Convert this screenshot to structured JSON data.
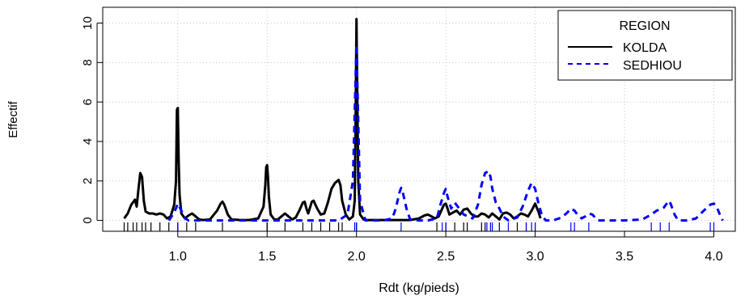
{
  "chart_data": {
    "type": "line",
    "title": "",
    "xlabel": "Rdt (kg/pieds)",
    "ylabel": "Effectif",
    "xlim": [
      0.58,
      4.12
    ],
    "ylim": [
      -0.55,
      10.8
    ],
    "x_ticks": [
      "1.0",
      "1.5",
      "2.0",
      "2.5",
      "3.0",
      "3.5",
      "4.0"
    ],
    "y_ticks": [
      "0",
      "2",
      "4",
      "6",
      "8",
      "10"
    ],
    "grid": true,
    "legend": {
      "title": "REGION",
      "placement": "top-right",
      "entries": [
        "KOLDA",
        "SEDHIOU"
      ]
    },
    "series": [
      {
        "name": "KOLDA",
        "color": "#000000",
        "dash": "solid",
        "x": [
          0.7,
          0.72,
          0.74,
          0.76,
          0.77,
          0.78,
          0.79,
          0.8,
          0.81,
          0.82,
          0.84,
          0.86,
          0.88,
          0.9,
          0.92,
          0.94,
          0.96,
          0.98,
          0.99,
          0.995,
          1.0,
          1.005,
          1.01,
          1.02,
          1.04,
          1.06,
          1.08,
          1.1,
          1.12,
          1.14,
          1.18,
          1.22,
          1.24,
          1.25,
          1.26,
          1.28,
          1.3,
          1.35,
          1.4,
          1.45,
          1.48,
          1.49,
          1.495,
          1.5,
          1.505,
          1.51,
          1.52,
          1.54,
          1.56,
          1.58,
          1.6,
          1.62,
          1.64,
          1.66,
          1.68,
          1.7,
          1.71,
          1.72,
          1.73,
          1.75,
          1.76,
          1.78,
          1.8,
          1.82,
          1.84,
          1.86,
          1.88,
          1.9,
          1.91,
          1.92,
          1.94,
          1.96,
          1.98,
          1.99,
          1.995,
          2.0,
          2.005,
          2.01,
          2.02,
          2.04,
          2.06,
          2.08,
          2.1,
          2.15,
          2.2,
          2.3,
          2.35,
          2.38,
          2.4,
          2.42,
          2.44,
          2.46,
          2.48,
          2.49,
          2.5,
          2.51,
          2.52,
          2.54,
          2.56,
          2.58,
          2.6,
          2.62,
          2.64,
          2.66,
          2.68,
          2.7,
          2.72,
          2.74,
          2.76,
          2.78,
          2.8,
          2.82,
          2.84,
          2.86,
          2.88,
          2.9,
          2.92,
          2.94,
          2.96,
          2.98,
          3.0,
          3.02,
          3.03
        ],
        "y": [
          0.1,
          0.35,
          0.8,
          1.05,
          0.7,
          1.6,
          2.4,
          2.2,
          1.0,
          0.45,
          0.35,
          0.35,
          0.3,
          0.35,
          0.3,
          0.1,
          0.2,
          0.8,
          2.0,
          5.6,
          5.7,
          3.0,
          1.3,
          0.35,
          0.1,
          0.25,
          0.35,
          0.2,
          0.05,
          0.02,
          0.05,
          0.5,
          0.85,
          0.95,
          0.8,
          0.3,
          0.05,
          0.02,
          0.02,
          0.1,
          0.7,
          1.8,
          2.7,
          2.8,
          2.2,
          1.2,
          0.3,
          0.05,
          0.05,
          0.2,
          0.35,
          0.2,
          0.05,
          0.15,
          0.5,
          0.9,
          0.95,
          0.6,
          0.35,
          0.95,
          1.0,
          0.6,
          0.3,
          0.35,
          0.9,
          1.6,
          1.9,
          2.05,
          1.8,
          1.0,
          0.3,
          0.05,
          0.2,
          1.0,
          5.0,
          10.2,
          6.0,
          2.0,
          0.3,
          0.05,
          0.02,
          0.02,
          0.02,
          0.02,
          0.02,
          0.02,
          0.1,
          0.25,
          0.3,
          0.2,
          0.1,
          0.2,
          0.6,
          0.8,
          0.85,
          0.6,
          0.3,
          0.4,
          0.5,
          0.3,
          0.55,
          0.6,
          0.35,
          0.2,
          0.2,
          0.35,
          0.3,
          0.15,
          0.35,
          0.2,
          0.05,
          0.35,
          0.4,
          0.3,
          0.1,
          0.2,
          0.35,
          0.3,
          0.2,
          0.5,
          0.85,
          0.4,
          0.1
        ]
      },
      {
        "name": "SEDHIOU",
        "color": "#0000ff",
        "dash": "dashed",
        "x": [
          0.95,
          0.98,
          1.0,
          1.02,
          1.04,
          1.06,
          1.5,
          1.9,
          1.95,
          1.98,
          1.99,
          2.0,
          2.01,
          2.02,
          2.05,
          2.1,
          2.15,
          2.2,
          2.22,
          2.24,
          2.25,
          2.26,
          2.28,
          2.3,
          2.35,
          2.4,
          2.45,
          2.47,
          2.49,
          2.5,
          2.51,
          2.53,
          2.55,
          2.6,
          2.65,
          2.68,
          2.7,
          2.72,
          2.74,
          2.75,
          2.76,
          2.78,
          2.8,
          2.82,
          2.85,
          2.9,
          2.93,
          2.96,
          2.98,
          3.0,
          3.02,
          3.04,
          3.06,
          3.1,
          3.15,
          3.18,
          3.2,
          3.22,
          3.24,
          3.26,
          3.28,
          3.3,
          3.32,
          3.35,
          3.5,
          3.6,
          3.65,
          3.68,
          3.7,
          3.72,
          3.74,
          3.75,
          3.76,
          3.78,
          3.8,
          3.85,
          3.9,
          3.95,
          3.98,
          4.0,
          4.02,
          4.04,
          4.05
        ],
        "y": [
          0.0,
          0.4,
          0.85,
          0.5,
          0.1,
          0.0,
          0.0,
          0.0,
          0.3,
          2.0,
          5.5,
          8.9,
          5.0,
          1.0,
          0.0,
          0.0,
          0.0,
          0.1,
          0.6,
          1.4,
          1.65,
          1.4,
          0.6,
          0.05,
          0.0,
          0.0,
          0.1,
          0.8,
          1.4,
          1.6,
          1.2,
          0.6,
          0.9,
          0.3,
          0.1,
          0.8,
          1.8,
          2.4,
          2.5,
          2.2,
          1.6,
          0.9,
          0.6,
          0.2,
          0.0,
          0.15,
          0.7,
          1.5,
          1.9,
          1.6,
          0.8,
          0.2,
          0.0,
          0.0,
          0.15,
          0.4,
          0.6,
          0.5,
          0.25,
          0.1,
          0.2,
          0.35,
          0.3,
          0.0,
          0.0,
          0.05,
          0.3,
          0.5,
          0.55,
          0.65,
          0.9,
          1.0,
          0.8,
          0.3,
          0.0,
          0.0,
          0.1,
          0.55,
          0.8,
          0.85,
          0.6,
          0.15,
          0.0
        ]
      }
    ],
    "rug": {
      "KOLDA": [
        0.7,
        0.72,
        0.75,
        0.77,
        0.8,
        0.82,
        0.85,
        0.9,
        0.95,
        1.0,
        1.0,
        1.05,
        1.1,
        1.25,
        1.5,
        1.5,
        1.6,
        1.7,
        1.75,
        1.8,
        1.85,
        1.9,
        1.92,
        2.0,
        2.0,
        2.45,
        2.5,
        2.5,
        2.55,
        2.6,
        2.62,
        2.7,
        2.72,
        2.8,
        2.9,
        2.95,
        3.0
      ],
      "SEDHIOU": [
        1.0,
        1.0,
        1.99,
        2.0,
        2.25,
        2.48,
        2.5,
        2.73,
        2.75,
        2.76,
        2.8,
        2.85,
        2.95,
        2.98,
        3.0,
        3.2,
        3.22,
        3.3,
        3.65,
        3.7,
        3.75,
        3.98,
        4.0
      ]
    }
  }
}
